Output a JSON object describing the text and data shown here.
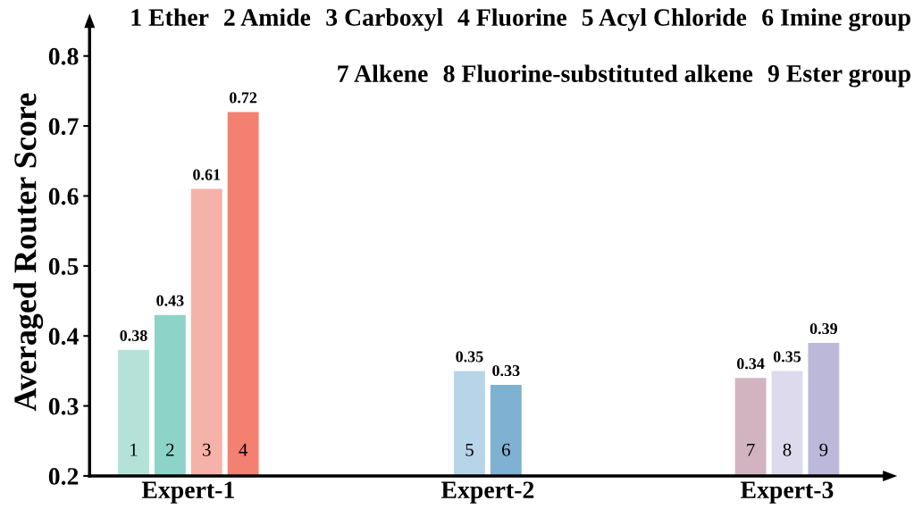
{
  "chart_data": {
    "type": "bar",
    "ylabel": "Averaged Router Score",
    "categories": [
      "Expert-1",
      "Expert-2",
      "Expert-3"
    ],
    "series": [
      {
        "name": "1",
        "color": "#b5e2d8",
        "values": [
          0.38,
          null,
          null
        ]
      },
      {
        "name": "2",
        "color": "#8dd3c7",
        "values": [
          0.43,
          null,
          null
        ]
      },
      {
        "name": "3",
        "color": "#f5b2a8",
        "values": [
          0.61,
          null,
          null
        ]
      },
      {
        "name": "4",
        "color": "#f48072",
        "values": [
          0.72,
          null,
          null
        ]
      },
      {
        "name": "5",
        "color": "#b8d4e8",
        "values": [
          null,
          0.35,
          null
        ]
      },
      {
        "name": "6",
        "color": "#7fb1d3",
        "values": [
          null,
          0.33,
          null
        ]
      },
      {
        "name": "7",
        "color": "#d2b4c0",
        "values": [
          null,
          null,
          0.34
        ]
      },
      {
        "name": "8",
        "color": "#dcdaec",
        "values": [
          null,
          null,
          0.35
        ]
      },
      {
        "name": "9",
        "color": "#bcb8da",
        "values": [
          null,
          null,
          0.39
        ]
      }
    ],
    "ylim": [
      0.2,
      0.84
    ],
    "yticks": [
      0.2,
      0.3,
      0.4,
      0.5,
      0.6,
      0.7,
      0.8
    ],
    "data_labels": true,
    "grid": false,
    "legend": false,
    "annotations": [
      "1 Ether",
      "2 Amide",
      "3 Carboxyl",
      "4 Fluorine",
      "5 Acyl Chloride",
      "6 Imine group",
      "7 Alkene",
      "8 Fluorine-substituted alkene",
      "9 Ester group"
    ]
  }
}
